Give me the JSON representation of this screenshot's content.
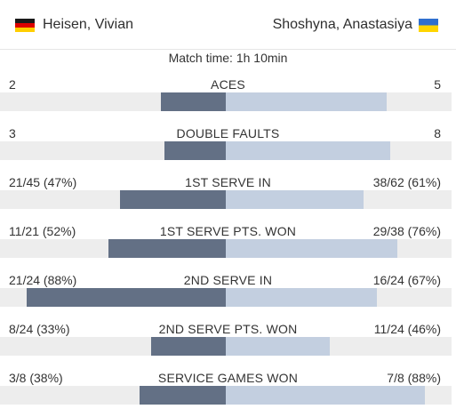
{
  "header": {
    "player_left": {
      "name": "Heisen, Vivian",
      "flag_icon": "germany-flag-icon"
    },
    "player_right": {
      "name": "Shoshyna, Anastasiya",
      "flag_icon": "ukraine-flag-icon"
    }
  },
  "match_time": "Match time: 1h 10min",
  "colors": {
    "left_bar": "#637085",
    "right_bar": "#c3cfe0",
    "track": "#ededed"
  },
  "stats": [
    {
      "label": "ACES",
      "left": "2",
      "right": "5",
      "left_share": 0.286,
      "right_share": 0.714
    },
    {
      "label": "DOUBLE FAULTS",
      "left": "3",
      "right": "8",
      "left_share": 0.273,
      "right_share": 0.727
    },
    {
      "label": "1ST SERVE IN",
      "left": "21/45 (47%)",
      "right": "38/62 (61%)",
      "left_share": 0.47,
      "right_share": 0.61
    },
    {
      "label": "1ST SERVE PTS. WON",
      "left": "11/21 (52%)",
      "right": "29/38 (76%)",
      "left_share": 0.52,
      "right_share": 0.76
    },
    {
      "label": "2ND SERVE IN",
      "left": "21/24 (88%)",
      "right": "16/24 (67%)",
      "left_share": 0.88,
      "right_share": 0.67
    },
    {
      "label": "2ND SERVE PTS. WON",
      "left": "8/24 (33%)",
      "right": "11/24 (46%)",
      "left_share": 0.33,
      "right_share": 0.46
    },
    {
      "label": "SERVICE GAMES WON",
      "left": "3/8 (38%)",
      "right": "7/8 (88%)",
      "left_share": 0.38,
      "right_share": 0.88
    }
  ]
}
